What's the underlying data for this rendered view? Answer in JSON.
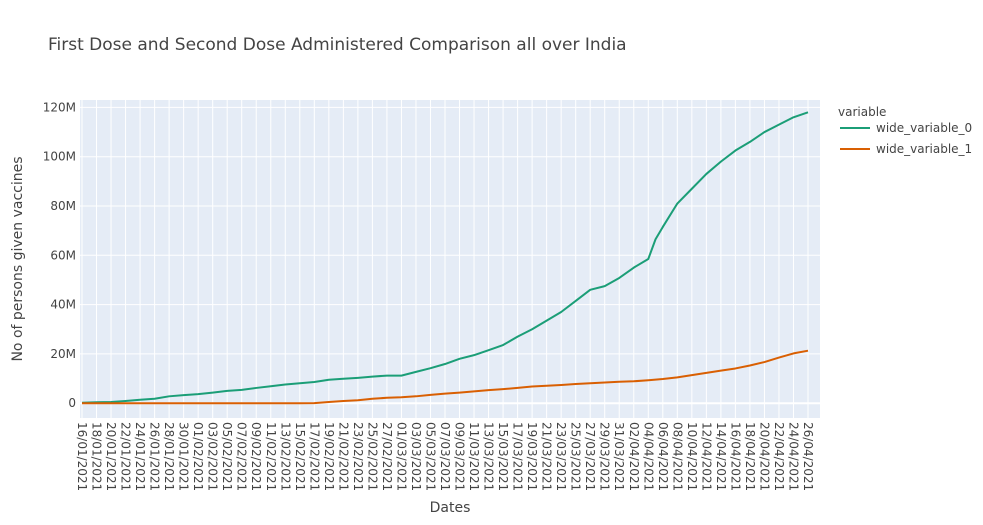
{
  "chart_data": {
    "type": "line",
    "title": "First Dose and Second Dose Administered Comparison all over India",
    "xlabel": "Dates",
    "ylabel": "No of persons given vaccines",
    "legend_title": "variable",
    "legend_position": "top-right",
    "grid": true,
    "ylim": [
      -6000000,
      123000000
    ],
    "y_ticks": [
      0,
      20000000,
      40000000,
      60000000,
      80000000,
      100000000,
      120000000
    ],
    "y_tick_labels": [
      "0",
      "20M",
      "40M",
      "60M",
      "80M",
      "100M",
      "120M"
    ],
    "x_tick_labels": [
      "16/01/2021",
      "18/01/2021",
      "20/01/2021",
      "22/01/2021",
      "24/01/2021",
      "26/01/2021",
      "28/01/2021",
      "30/01/2021",
      "01/02/2021",
      "03/02/2021",
      "05/02/2021",
      "07/02/2021",
      "09/02/2021",
      "11/02/2021",
      "13/02/2021",
      "15/02/2021",
      "17/02/2021",
      "19/02/2021",
      "21/02/2021",
      "23/02/2021",
      "25/02/2021",
      "27/02/2021",
      "01/03/2021",
      "03/03/2021",
      "05/03/2021",
      "07/03/2021",
      "09/03/2021",
      "11/03/2021",
      "13/03/2021",
      "15/03/2021",
      "17/03/2021",
      "19/03/2021",
      "21/03/2021",
      "23/03/2021",
      "25/03/2021",
      "27/03/2021",
      "29/03/2021",
      "31/03/2021",
      "02/04/2021",
      "04/04/2021",
      "06/04/2021",
      "08/04/2021",
      "10/04/2021",
      "12/04/2021",
      "14/04/2021",
      "16/04/2021",
      "18/04/2021",
      "20/04/2021",
      "22/04/2021",
      "24/04/2021",
      "26/04/2021"
    ],
    "series": [
      {
        "name": "wide_variable_0",
        "color": "#1b9e77",
        "x": [
          "16/01/2021",
          "18/01/2021",
          "20/01/2021",
          "22/01/2021",
          "24/01/2021",
          "26/01/2021",
          "28/01/2021",
          "30/01/2021",
          "01/02/2021",
          "03/02/2021",
          "05/02/2021",
          "07/02/2021",
          "09/02/2021",
          "11/02/2021",
          "13/02/2021",
          "15/02/2021",
          "17/02/2021",
          "19/02/2021",
          "21/02/2021",
          "23/02/2021",
          "25/02/2021",
          "27/02/2021",
          "01/03/2021",
          "03/03/2021",
          "05/03/2021",
          "07/03/2021",
          "09/03/2021",
          "11/03/2021",
          "13/03/2021",
          "15/03/2021",
          "17/03/2021",
          "19/03/2021",
          "21/03/2021",
          "23/03/2021",
          "25/03/2021",
          "27/03/2021",
          "29/03/2021",
          "31/03/2021",
          "02/04/2021",
          "04/04/2021",
          "05/04/2021",
          "06/04/2021",
          "08/04/2021",
          "10/04/2021",
          "12/04/2021",
          "14/04/2021",
          "16/04/2021",
          "18/04/2021",
          "20/04/2021",
          "22/04/2021",
          "24/04/2021",
          "26/04/2021"
        ],
        "values": [
          0.2,
          0.4,
          0.5,
          0.9,
          1.4,
          1.8,
          2.8,
          3.3,
          3.7,
          4.3,
          5.0,
          5.4,
          6.2,
          6.9,
          7.6,
          8.1,
          8.6,
          9.5,
          9.9,
          10.3,
          10.8,
          11.2,
          11.2,
          12.7,
          14.2,
          15.9,
          18.0,
          19.5,
          21.5,
          23.6,
          27.0,
          30.0,
          33.5,
          37.0,
          41.5,
          46.0,
          47.5,
          50.8,
          55.0,
          58.5,
          66.5,
          71.5,
          81.0,
          87.0,
          93.0,
          98.0,
          102.5,
          106.0,
          110.0,
          113.0,
          116.0,
          118.0
        ]
      },
      {
        "name": "wide_variable_1",
        "color": "#d95f02",
        "x": [
          "16/01/2021",
          "18/01/2021",
          "20/01/2021",
          "22/01/2021",
          "24/01/2021",
          "26/01/2021",
          "28/01/2021",
          "30/01/2021",
          "01/02/2021",
          "03/02/2021",
          "05/02/2021",
          "07/02/2021",
          "09/02/2021",
          "11/02/2021",
          "13/02/2021",
          "15/02/2021",
          "17/02/2021",
          "19/02/2021",
          "21/02/2021",
          "23/02/2021",
          "25/02/2021",
          "27/02/2021",
          "01/03/2021",
          "03/03/2021",
          "05/03/2021",
          "07/03/2021",
          "09/03/2021",
          "11/03/2021",
          "13/03/2021",
          "15/03/2021",
          "17/03/2021",
          "19/03/2021",
          "21/03/2021",
          "23/03/2021",
          "25/03/2021",
          "27/03/2021",
          "29/03/2021",
          "31/03/2021",
          "02/04/2021",
          "04/04/2021",
          "06/04/2021",
          "08/04/2021",
          "10/04/2021",
          "12/04/2021",
          "14/04/2021",
          "16/04/2021",
          "18/04/2021",
          "20/04/2021",
          "22/04/2021",
          "24/04/2021",
          "26/04/2021"
        ],
        "values": [
          0,
          0,
          0,
          0,
          0,
          0,
          0,
          0,
          0,
          0,
          0,
          0,
          0,
          0,
          0,
          0,
          0.05,
          0.5,
          0.9,
          1.2,
          1.8,
          2.2,
          2.4,
          2.8,
          3.4,
          3.9,
          4.3,
          4.8,
          5.3,
          5.7,
          6.2,
          6.8,
          7.1,
          7.4,
          7.8,
          8.1,
          8.4,
          8.7,
          8.9,
          9.3,
          9.8,
          10.5,
          11.4,
          12.3,
          13.2,
          14.1,
          15.3,
          16.7,
          18.5,
          20.2,
          21.3
        ]
      }
    ],
    "value_scale_note": ""
  }
}
